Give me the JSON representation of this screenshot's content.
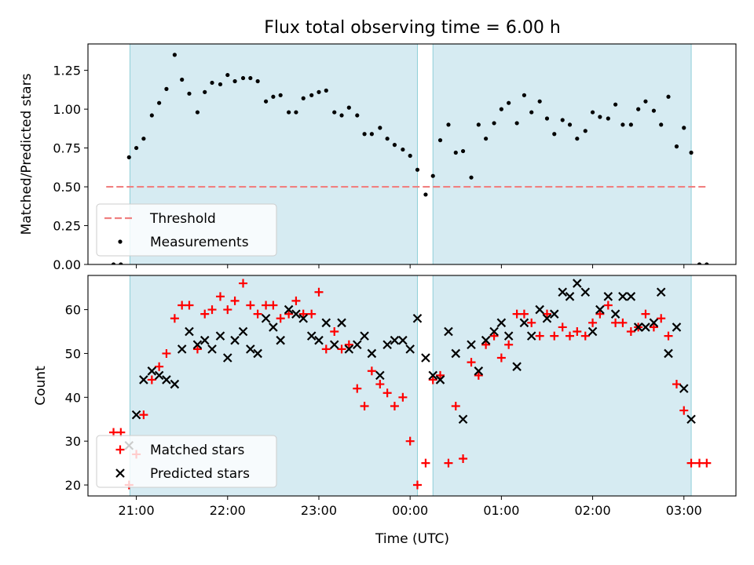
{
  "figure": {
    "title": "Flux total observing time = 6.00 h",
    "xlabel": "Time (UTC)"
  },
  "colors": {
    "threshold": "#f08080",
    "measurements": "#000000",
    "matched": "#ff0000",
    "predicted": "#000000",
    "span_fill": "#add8e6"
  },
  "chart_data": [
    {
      "type": "scatter",
      "panel": "top",
      "ylabel": "Matched/Predicted stars",
      "ylim": [
        0,
        1.42
      ],
      "yticks": [
        0.0,
        0.25,
        0.5,
        0.75,
        1.0,
        1.25
      ],
      "ytick_labels": [
        "0.00",
        "0.25",
        "0.50",
        "0.75",
        "1.00",
        "1.25"
      ],
      "xlim_hours": [
        20.47,
        27.57
      ],
      "xticks_hours": [
        21,
        22,
        23,
        24,
        25,
        26,
        27
      ],
      "xtick_labels": [
        "21:00",
        "22:00",
        "23:00",
        "00:00",
        "01:00",
        "02:00",
        "03:00"
      ],
      "shaded_spans": [
        [
          20.93,
          24.08
        ],
        [
          24.25,
          27.08
        ]
      ],
      "legend": {
        "position": "lower-left",
        "entries": [
          "Threshold",
          "Measurements"
        ]
      },
      "series": [
        {
          "name": "Threshold",
          "kind": "dashed-line",
          "x": [
            20.67,
            27.25
          ],
          "y": [
            0.5,
            0.5
          ]
        },
        {
          "name": "Measurements",
          "kind": "points",
          "x": [
            20.75,
            20.83,
            20.92,
            21.0,
            21.08,
            21.17,
            21.25,
            21.33,
            21.42,
            21.5,
            21.58,
            21.67,
            21.75,
            21.83,
            21.92,
            22.0,
            22.08,
            22.17,
            22.25,
            22.33,
            22.42,
            22.5,
            22.58,
            22.67,
            22.75,
            22.83,
            22.92,
            23.0,
            23.08,
            23.17,
            23.25,
            23.33,
            23.42,
            23.5,
            23.58,
            23.67,
            23.75,
            23.83,
            23.92,
            24.0,
            24.08,
            24.17,
            24.25,
            24.33,
            24.42,
            24.5,
            24.58,
            24.67,
            24.75,
            24.83,
            24.92,
            25.0,
            25.08,
            25.17,
            25.25,
            25.33,
            25.42,
            25.5,
            25.58,
            25.67,
            25.75,
            25.83,
            25.92,
            26.0,
            26.08,
            26.17,
            26.25,
            26.33,
            26.42,
            26.5,
            26.58,
            26.67,
            26.75,
            26.83,
            26.92,
            27.0,
            27.08,
            27.17,
            27.25
          ],
          "y": [
            0.0,
            0.0,
            0.69,
            0.75,
            0.81,
            0.96,
            1.04,
            1.13,
            1.35,
            1.19,
            1.1,
            0.98,
            1.11,
            1.17,
            1.16,
            1.22,
            1.18,
            1.2,
            1.2,
            1.18,
            1.05,
            1.08,
            1.09,
            0.98,
            0.98,
            1.07,
            1.09,
            1.11,
            1.12,
            0.98,
            0.96,
            1.01,
            0.96,
            0.84,
            0.84,
            0.88,
            0.81,
            0.77,
            0.74,
            0.7,
            0.61,
            0.45,
            0.57,
            0.8,
            0.9,
            0.72,
            0.73,
            0.56,
            0.9,
            0.81,
            0.91,
            1.0,
            1.04,
            0.91,
            1.09,
            0.98,
            1.05,
            0.94,
            0.84,
            0.93,
            0.9,
            0.81,
            0.86,
            0.98,
            0.95,
            0.94,
            1.03,
            0.9,
            0.9,
            1.0,
            1.05,
            0.99,
            0.9,
            1.08,
            0.76,
            0.88,
            0.72,
            0.0,
            0.0
          ]
        }
      ]
    },
    {
      "type": "scatter",
      "panel": "bottom",
      "ylabel": "Count",
      "ylim": [
        17.5,
        67.8
      ],
      "yticks": [
        20,
        30,
        40,
        50,
        60
      ],
      "ytick_labels": [
        "20",
        "30",
        "40",
        "50",
        "60"
      ],
      "xlim_hours": [
        20.47,
        27.57
      ],
      "xticks_hours": [
        21,
        22,
        23,
        24,
        25,
        26,
        27
      ],
      "xtick_labels": [
        "21:00",
        "22:00",
        "23:00",
        "00:00",
        "01:00",
        "02:00",
        "03:00"
      ],
      "shaded_spans": [
        [
          20.93,
          24.08
        ],
        [
          24.25,
          27.08
        ]
      ],
      "legend": {
        "position": "lower-left",
        "entries": [
          "Matched stars",
          "Predicted stars"
        ]
      },
      "series": [
        {
          "name": "Matched stars",
          "marker": "plus",
          "x": [
            20.75,
            20.83,
            20.92,
            21.0,
            21.08,
            21.17,
            21.25,
            21.33,
            21.42,
            21.5,
            21.58,
            21.67,
            21.75,
            21.83,
            21.92,
            22.0,
            22.08,
            22.17,
            22.25,
            22.33,
            22.42,
            22.5,
            22.58,
            22.67,
            22.75,
            22.83,
            22.92,
            23.0,
            23.08,
            23.17,
            23.25,
            23.33,
            23.42,
            23.5,
            23.58,
            23.67,
            23.75,
            23.83,
            23.92,
            24.0,
            24.08,
            24.17,
            24.25,
            24.33,
            24.42,
            24.5,
            24.58,
            24.67,
            24.75,
            24.83,
            24.92,
            25.0,
            25.08,
            25.17,
            25.25,
            25.33,
            25.42,
            25.5,
            25.58,
            25.67,
            25.75,
            25.83,
            25.92,
            26.0,
            26.08,
            26.17,
            26.25,
            26.33,
            26.42,
            26.5,
            26.58,
            26.67,
            26.75,
            26.83,
            26.92,
            27.0,
            27.08,
            27.17,
            27.25
          ],
          "y": [
            32,
            32,
            20,
            27,
            36,
            44,
            47,
            50,
            58,
            61,
            61,
            51,
            59,
            60,
            63,
            60,
            62,
            66,
            61,
            59,
            61,
            61,
            58,
            59,
            62,
            59,
            59,
            64,
            51,
            55,
            51,
            52,
            42,
            38,
            46,
            43,
            41,
            38,
            40,
            30,
            20,
            25,
            44,
            45,
            25,
            38,
            26,
            48,
            45,
            52,
            54,
            49,
            52,
            59,
            59,
            57,
            54,
            59,
            54,
            56,
            54,
            55,
            54,
            57,
            59,
            61,
            57,
            57,
            55,
            56,
            59,
            56,
            58,
            54,
            43,
            37,
            25,
            25,
            25
          ]
        },
        {
          "name": "Predicted stars",
          "marker": "x",
          "x": [
            20.92,
            21.0,
            21.08,
            21.17,
            21.25,
            21.33,
            21.42,
            21.5,
            21.58,
            21.67,
            21.75,
            21.83,
            21.92,
            22.0,
            22.08,
            22.17,
            22.25,
            22.33,
            22.42,
            22.5,
            22.58,
            22.67,
            22.75,
            22.83,
            22.92,
            23.0,
            23.08,
            23.17,
            23.25,
            23.33,
            23.42,
            23.5,
            23.58,
            23.67,
            23.75,
            23.83,
            23.92,
            24.0,
            24.08,
            24.17,
            24.25,
            24.33,
            24.42,
            24.5,
            24.58,
            24.67,
            24.75,
            24.83,
            24.92,
            25.0,
            25.08,
            25.17,
            25.25,
            25.33,
            25.42,
            25.5,
            25.58,
            25.67,
            25.75,
            25.83,
            25.92,
            26.0,
            26.08,
            26.17,
            26.25,
            26.33,
            26.42,
            26.5,
            26.58,
            26.67,
            26.75,
            26.83,
            26.92,
            27.0,
            27.08
          ],
          "y": [
            29,
            36,
            44,
            46,
            45,
            44,
            43,
            51,
            55,
            52,
            53,
            51,
            54,
            49,
            53,
            55,
            51,
            50,
            58,
            56,
            53,
            60,
            59,
            58,
            54,
            53,
            57,
            52,
            57,
            51,
            52,
            54,
            50,
            45,
            52,
            53,
            53,
            51,
            58,
            49,
            45,
            44,
            55,
            50,
            35,
            52,
            46,
            53,
            55,
            57,
            54,
            47,
            57,
            54,
            60,
            58,
            59,
            64,
            63,
            66,
            64,
            55,
            60,
            63,
            59,
            63,
            63,
            56,
            56,
            57,
            64,
            50,
            56,
            42,
            35
          ]
        }
      ]
    }
  ]
}
